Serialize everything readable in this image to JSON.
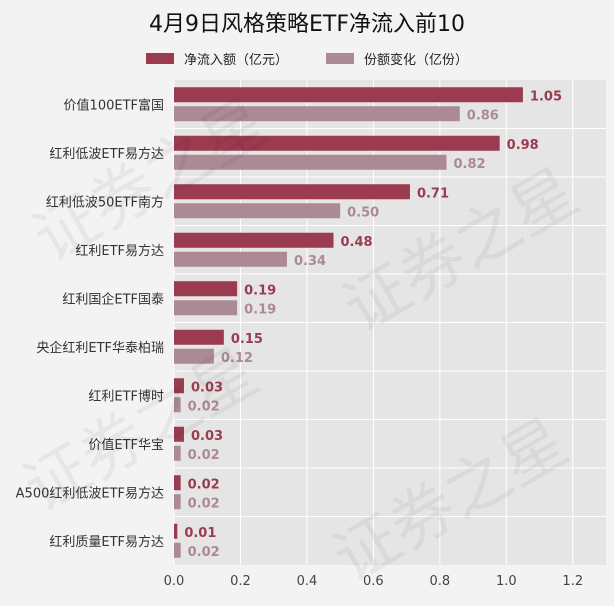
{
  "title": "4月9日风格策略ETF净流入前10",
  "watermark": "证券之星",
  "colors": {
    "inflow": "#9a3b4f",
    "shares": "#ab8a94",
    "plot_bg": "#e5e5e5",
    "grid": "#ffffff"
  },
  "chart_data": {
    "type": "bar",
    "orientation": "horizontal",
    "categories": [
      "价值100ETF富国",
      "红利低波ETF易方达",
      "红利低波50ETF南方",
      "红利ETF易方达",
      "红利国企ETF国泰",
      "央企红利ETF华泰柏瑞",
      "红利ETF博时",
      "价值ETF华宝",
      "A500红利低波ETF易方达",
      "红利质量ETF易方达"
    ],
    "series": [
      {
        "name": "净流入额（亿元）",
        "values": [
          1.05,
          0.98,
          0.71,
          0.48,
          0.19,
          0.15,
          0.03,
          0.03,
          0.02,
          0.01
        ]
      },
      {
        "name": "份额变化（亿份）",
        "values": [
          0.86,
          0.82,
          0.5,
          0.34,
          0.19,
          0.12,
          0.02,
          0.02,
          0.02,
          0.02
        ]
      }
    ],
    "xlim": [
      0,
      1.3
    ],
    "xticks": [
      "0.0",
      "0.2",
      "0.4",
      "0.6",
      "0.8",
      "1.0",
      "1.2"
    ],
    "legend_position": "top-center",
    "grid": true
  }
}
